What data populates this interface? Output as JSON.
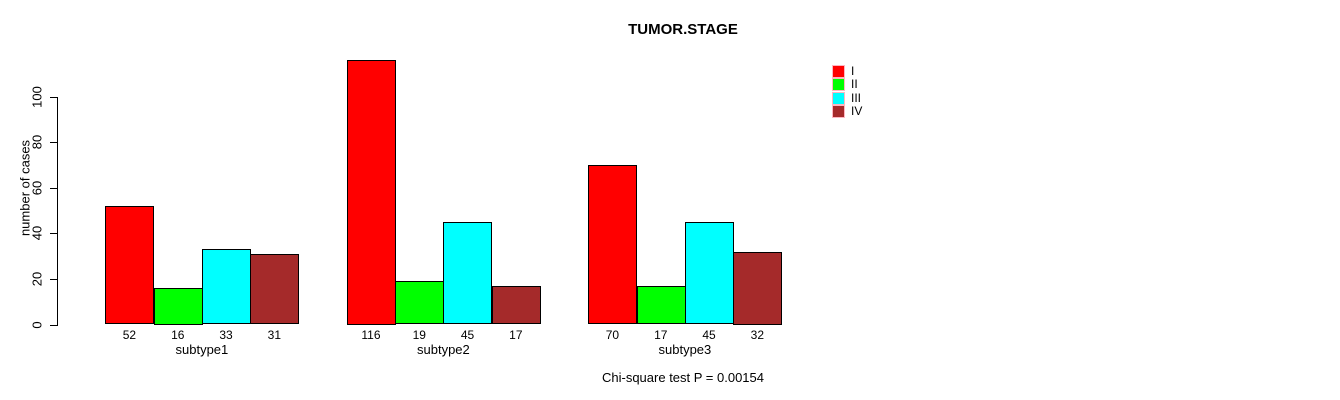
{
  "figure": {
    "title": "TUMOR.STAGE",
    "ylabel": "number of cases",
    "footnote": "Chi-square test P = 0.00154"
  },
  "chart_data": {
    "type": "bar",
    "grouped": true,
    "title": "TUMOR.STAGE",
    "xlabel": "",
    "ylabel": "number of cases",
    "categories": [
      "subtype1",
      "subtype2",
      "subtype3"
    ],
    "series": [
      {
        "name": "I",
        "color": "#ff0000",
        "values": [
          52,
          116,
          70
        ]
      },
      {
        "name": "II",
        "color": "#00ff00",
        "values": [
          16,
          19,
          17
        ]
      },
      {
        "name": "III",
        "color": "#00ffff",
        "values": [
          33,
          45,
          45
        ]
      },
      {
        "name": "IV",
        "color": "#a52a2a",
        "values": [
          31,
          17,
          32
        ]
      }
    ],
    "yticks": [
      0,
      20,
      40,
      60,
      80,
      100
    ],
    "ylim": [
      0,
      120
    ],
    "bar_value_labels_shown": true,
    "grid": false,
    "legend_position": "top-right",
    "legend_entries": [
      "I",
      "II",
      "III",
      "IV"
    ],
    "annotation": "Chi-square test P = 0.00154"
  },
  "colors": {
    "background": "#ffffff",
    "text": "#000000",
    "bar_border": "#000000",
    "axis": "#000000",
    "legend_swatch_border": "#ffb6c1"
  }
}
